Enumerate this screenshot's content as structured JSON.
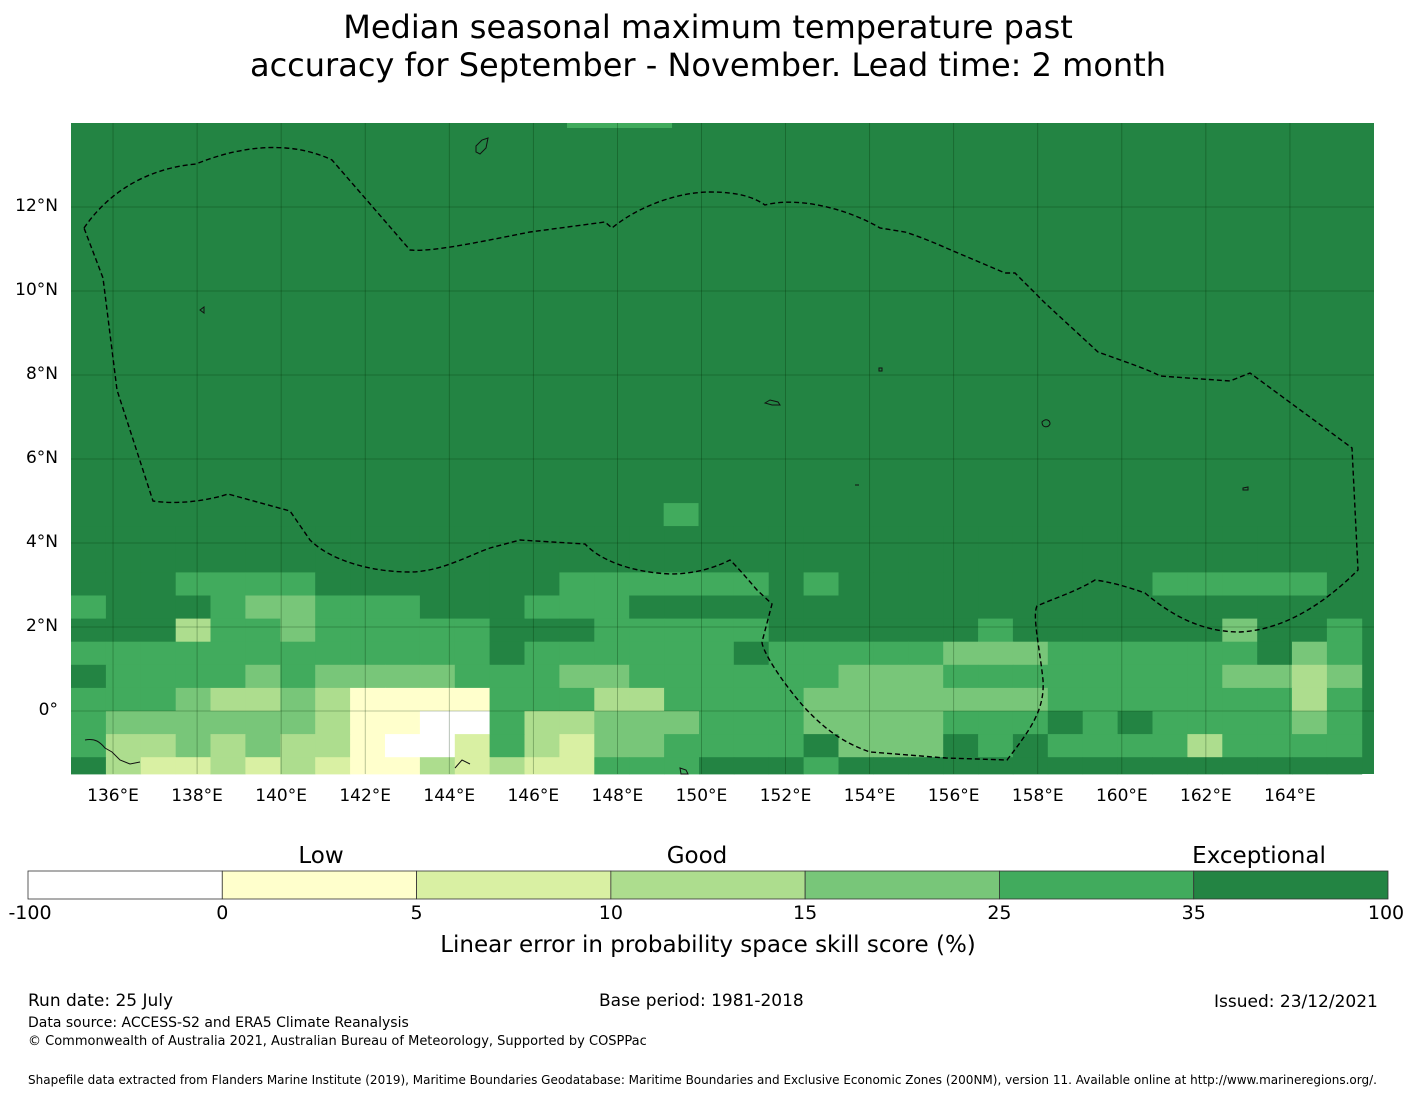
{
  "title": {
    "line1": "Median seasonal maximum temperature past",
    "line2": "accuracy for September - November. Lead time: 2 month"
  },
  "map": {
    "lat_labels": [
      "12°N",
      "10°N",
      "8°N",
      "6°N",
      "4°N",
      "2°N",
      "0°"
    ],
    "lon_labels": [
      "136°E",
      "138°E",
      "140°E",
      "142°E",
      "144°E",
      "146°E",
      "148°E",
      "150°E",
      "152°E",
      "154°E",
      "156°E",
      "158°E",
      "160°E",
      "162°E",
      "164°E"
    ],
    "lon_range": [
      135.0,
      166.0
    ],
    "lat_range": [
      -1.5,
      14.0
    ],
    "category_colors": [
      "#ffffff",
      "#ffffcc",
      "#d9f0a3",
      "#addd8e",
      "#78c679",
      "#41ab5d",
      "#238443"
    ],
    "grid": {
      "cell_deg": 0.83,
      "row_lat_top": [
        4.4,
        3.85,
        3.3,
        2.75,
        2.2,
        1.65,
        1.1,
        0.55,
        0.0,
        -0.55,
        -1.1
      ],
      "col_lon_start": 135.0,
      "rows": [
        "6666666666666666666666666666666666666",
        "6666666666666666666666666666666666666",
        "6665555666666655555565666666666555556",
        "5666544555666555666666666666666666666",
        "6663554555556665555566666656666664665",
        "5555555555556555555655555444555555645",
        "6555545444455544555555444555555554434",
        "5554334311115553355554444444555555535",
        "5444444311005334445554444555656555545",
        "5334343310025324455556444656555535555",
        "6322323211323225556665666666666666666"
      ]
    }
  },
  "colorbar": {
    "categories": [
      "Low",
      "Good",
      "Exceptional"
    ],
    "ticks": [
      "-100",
      "0",
      "5",
      "10",
      "15",
      "25",
      "35",
      "100"
    ],
    "label": "Linear error in probability space skill score (%)"
  },
  "footer": {
    "run_date": "Run date: 25 July",
    "base_period": "Base period: 1981-2018",
    "issued": "Issued: 23/12/2021",
    "data_source": "Data source: ACCESS-S2 and ERA5 Climate Reanalysis",
    "copyright": "© Commonwealth of Australia 2021, Australian Bureau of Meteorology, Supported by COSPPac",
    "shapefile": "Shapefile data extracted from Flanders Marine Institute (2019), Maritime Boundaries Geodatabase: Maritime Boundaries and Exclusive Economic Zones (200NM), version 11. Available online at http://www.marineregions.org/."
  }
}
